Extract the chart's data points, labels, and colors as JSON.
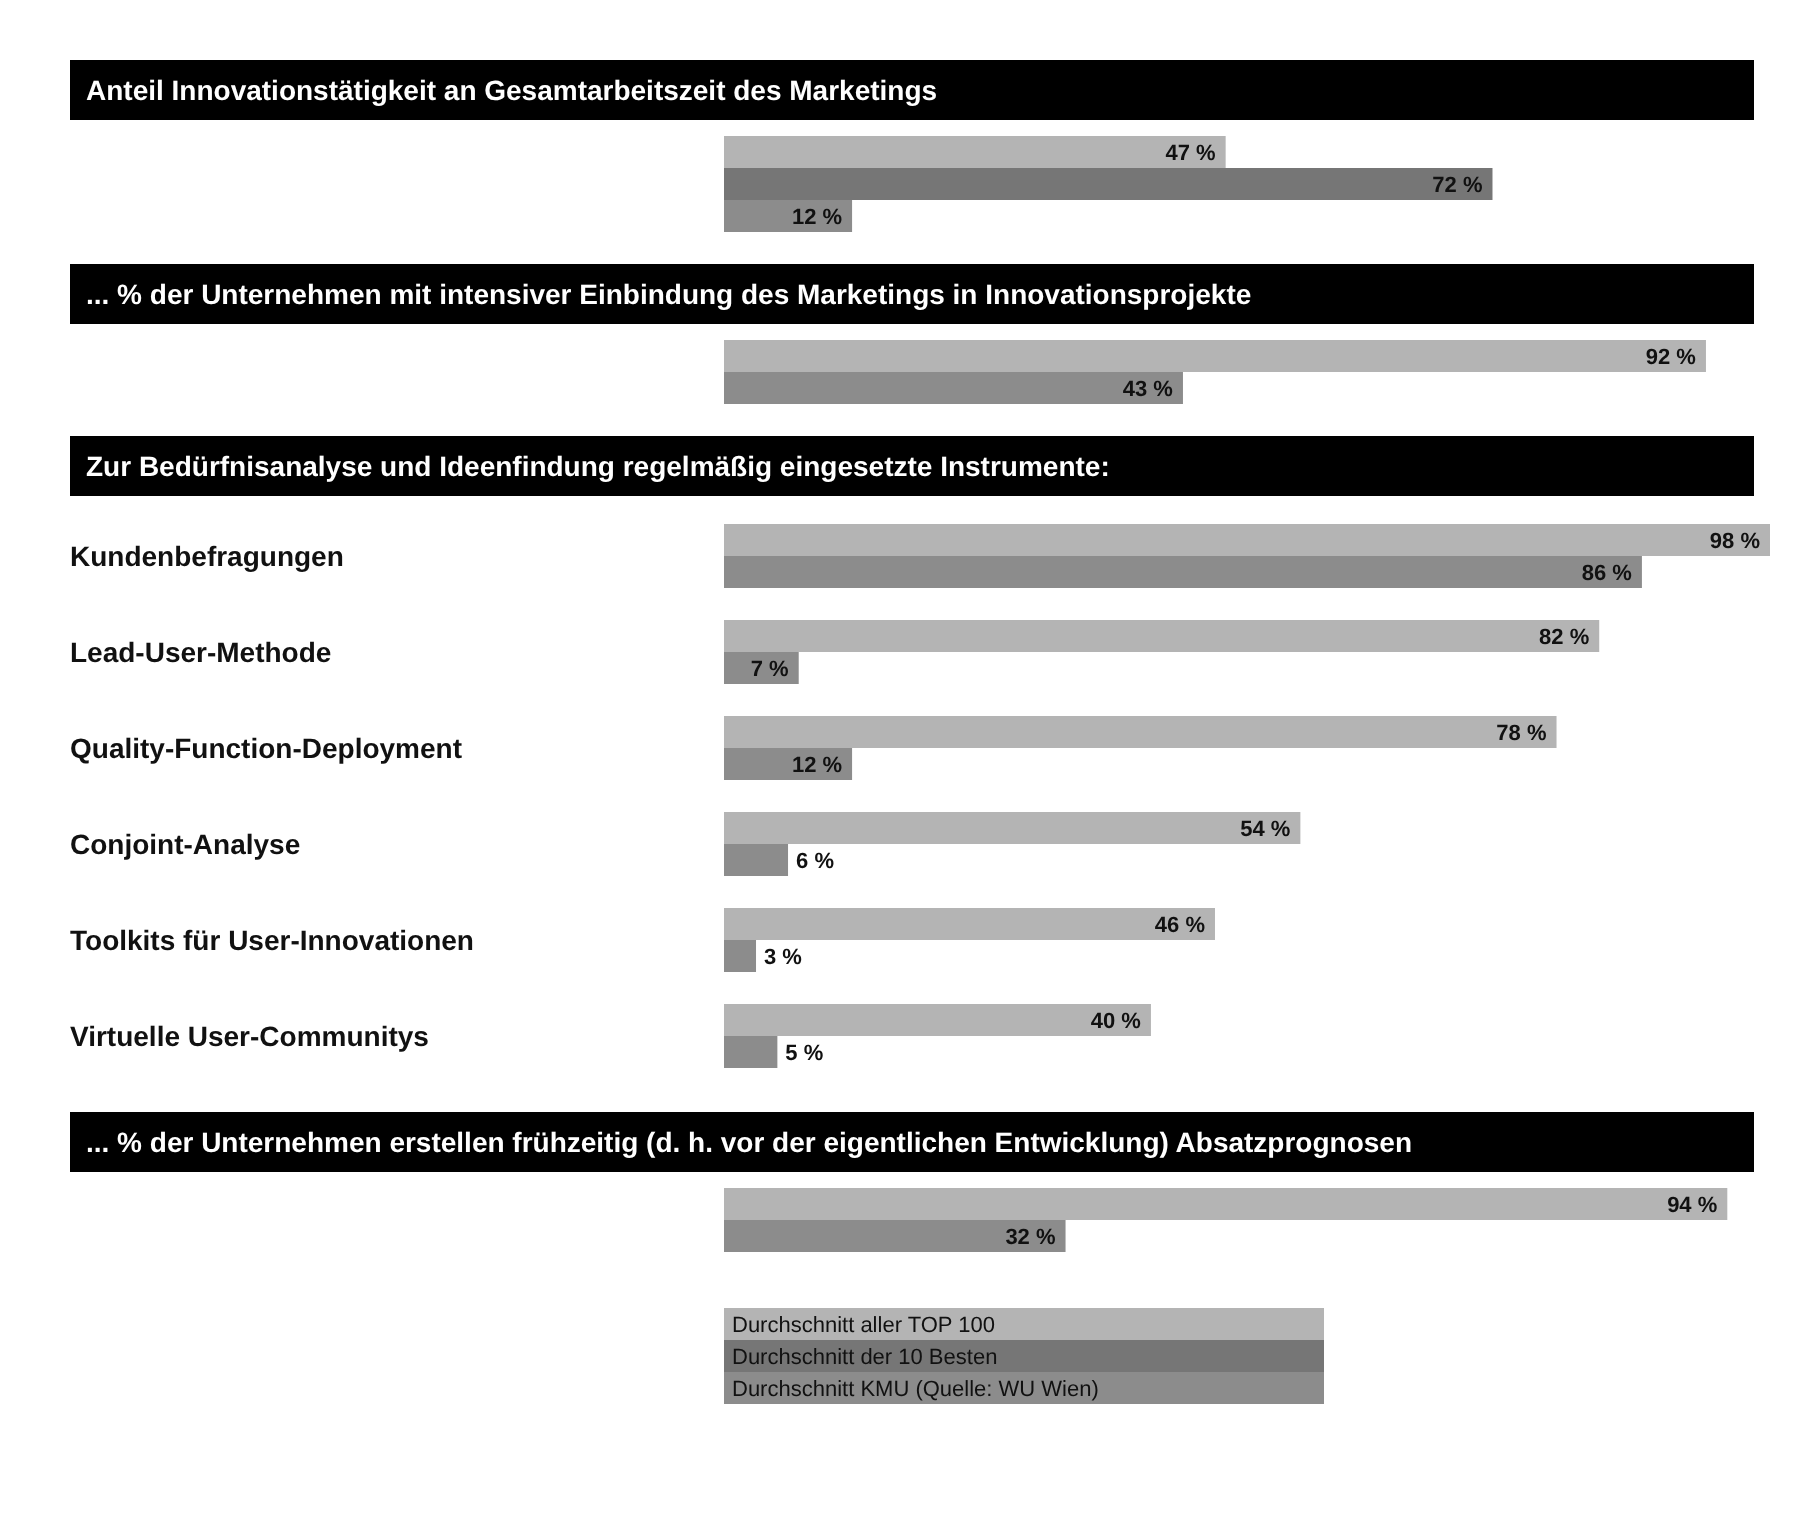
{
  "chart_data": [
    {
      "type": "bar",
      "orientation": "horizontal",
      "title": "Anteil Innovationstätigkeit an Gesamtarbeitszeit des Marketings",
      "categories": [
        null
      ],
      "tick_labels": "y",
      "legend": "bottom",
      "series": [
        {
          "name": "Durchschnitt aller TOP 100",
          "color": "#b4b4b4",
          "values": [
            47
          ],
          "value_labels": [
            "47 %"
          ]
        },
        {
          "name": "Durchschnitt der 10 Besten",
          "color": "#767676",
          "values": [
            72
          ],
          "value_labels": [
            "72 %"
          ]
        },
        {
          "name": "Durchschnitt KMU (Quelle: WU Wien)",
          "color": "#8c8c8c",
          "values": [
            12
          ],
          "value_labels": [
            "12 %"
          ]
        }
      ]
    },
    {
      "type": "bar",
      "orientation": "horizontal",
      "title": "... % der Unternehmen mit intensiver Einbindung des Marketings in Innovationsprojekte",
      "categories": [
        null
      ],
      "tick_labels": "y",
      "legend": false,
      "series": [
        {
          "color": "#b4b4b4",
          "values": [
            92
          ],
          "value_labels": [
            "92 %"
          ]
        },
        {
          "color": "#8c8c8c",
          "values": [
            43
          ],
          "value_labels": [
            "43 %"
          ]
        }
      ]
    },
    {
      "type": "bar",
      "orientation": "horizontal",
      "title": "Zur Bedürfnisanalyse und Ideenfindung regelmäßig eingesetzte Instrumente:",
      "categories": [
        "Kundenbefragungen",
        "Lead-User-Methode",
        "Quality-Function-Deployment",
        "Conjoint-Analyse",
        "Toolkits für User-Innovationen",
        "Virtuelle User-Communitys"
      ],
      "tick_labels": "y",
      "legend": false,
      "series": [
        {
          "color": "#b4b4b4",
          "values": [
            98,
            82,
            78,
            54,
            46,
            40
          ],
          "value_labels": [
            "98 %",
            "82 %",
            "78 %",
            "54 %",
            "46 %",
            "40 %"
          ]
        },
        {
          "color": "#8c8c8c",
          "values": [
            86,
            7,
            12,
            6,
            3,
            5
          ],
          "value_labels": [
            "86 %",
            "7 %",
            "12 %",
            "6 %",
            "3 %",
            "5 %"
          ]
        }
      ]
    },
    {
      "type": "bar",
      "orientation": "horizontal",
      "title": "... % der Unternehmen erstellen frühzeitig (d. h. vor der eigentlichen Entwicklung) Absatzprognosen",
      "categories": [
        null
      ],
      "tick_labels": "y",
      "legend": false,
      "series": [
        {
          "color": "#b4b4b4",
          "values": [
            94
          ],
          "value_labels": [
            "94 %"
          ]
        },
        {
          "color": "#8c8c8c",
          "values": [
            32
          ],
          "value_labels": [
            "32 %"
          ]
        }
      ]
    }
  ]
}
